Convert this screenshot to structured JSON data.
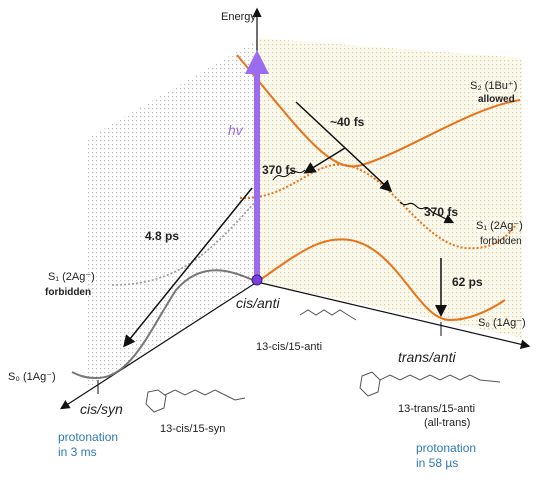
{
  "energy_axis": {
    "label": "Energy"
  },
  "excitation": {
    "label": "hv"
  },
  "states": [
    {
      "label": "S₂ (1Bu⁺)",
      "note": "allowed"
    },
    {
      "label": "S₁ (2Ag⁻)",
      "note": "forbidden"
    },
    {
      "label": "S₀ (1Ag⁻)"
    },
    {
      "label": "S₁ (2Ag⁻)",
      "note": "forbidden"
    },
    {
      "label": "S₀ (1Ag⁻)"
    }
  ],
  "transitions": [
    {
      "label": "~40 fs"
    },
    {
      "label": "370 fs"
    },
    {
      "label": "370 fs"
    },
    {
      "label": "4.8 ps"
    },
    {
      "label": "62 ps"
    }
  ],
  "conformers": [
    {
      "axis_label": "cis/anti",
      "name": "13-cis/15-anti"
    },
    {
      "axis_label": "trans/anti",
      "name": "13-trans/15-anti",
      "alias": "(all-trans)",
      "protonation": [
        "protonation",
        "in 58 µs"
      ]
    },
    {
      "axis_label": "cis/syn",
      "name": "13-cis/15-syn",
      "protonation": [
        "protonation",
        "in 3 ms"
      ]
    }
  ]
}
